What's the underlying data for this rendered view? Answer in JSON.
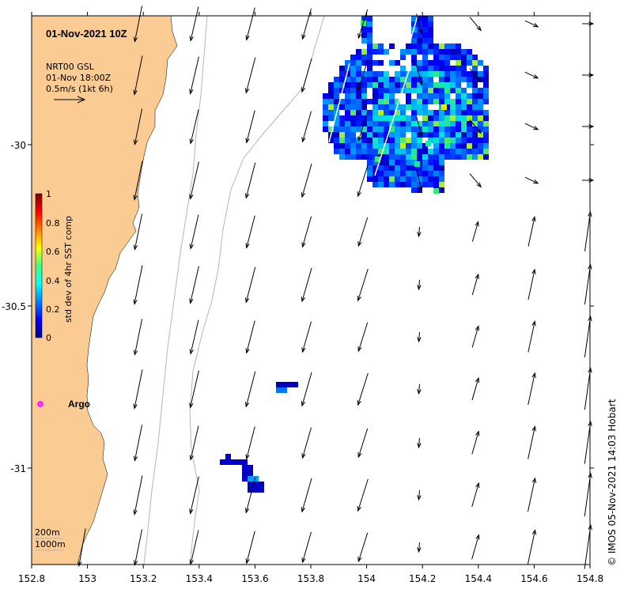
{
  "map": {
    "title": "01-Nov-2021 10Z",
    "current_label": {
      "line1": "NRT00 GSL",
      "line2": "01-Nov 18:00Z",
      "line3": "0.5m/s (1kt 6h)"
    },
    "colorbar": {
      "label": "std dev of 4hr SST comp",
      "ticks": [
        "1",
        "0.8",
        "0.6",
        "0.4",
        "0.2",
        "0"
      ]
    },
    "argo_label": "Argo",
    "depth_legend": {
      "line1": "200m",
      "line2": "1000m"
    },
    "credit": "© IMOS 05-Nov-2021 14:03 Hobart",
    "x_ticks": [
      "152.8",
      "153",
      "153.2",
      "153.4",
      "153.6",
      "153.8",
      "154",
      "154.2",
      "154.4",
      "154.6",
      "154.8"
    ],
    "y_ticks": [
      "-30",
      "-30.5",
      "-31"
    ],
    "colors": {
      "land": "#FBCB94",
      "argo": "#FF44FF",
      "bathymetry": "#B5B5B5"
    }
  }
}
